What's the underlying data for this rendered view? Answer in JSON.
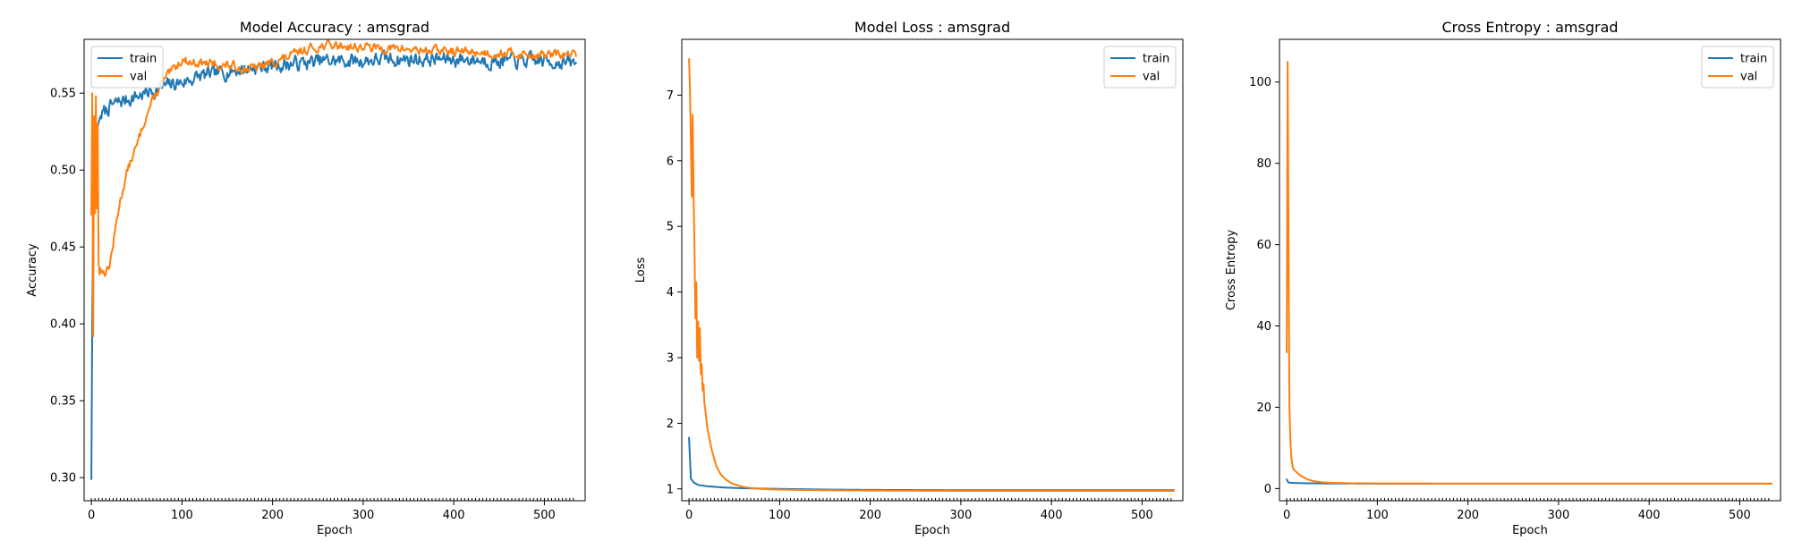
{
  "chart_data": [
    {
      "type": "line",
      "title": "Model Accuracy : amsgrad",
      "xlabel": "Epoch",
      "ylabel": "Accuracy",
      "xlim": [
        -8,
        545
      ],
      "ylim": [
        0.285,
        0.585
      ],
      "xticks": [
        0,
        100,
        200,
        300,
        400,
        500
      ],
      "yticks": [
        0.3,
        0.35,
        0.4,
        0.45,
        0.5,
        0.55
      ],
      "yticks_format": 2,
      "legend": "top-left",
      "grid": false,
      "series": [
        {
          "name": "train",
          "color": "#1f77b4",
          "x": [
            0,
            1,
            2,
            4,
            6,
            8,
            10,
            15,
            20,
            30,
            40,
            50,
            60,
            70,
            80,
            90,
            100,
            110,
            120,
            130,
            140,
            150,
            160,
            170,
            180,
            190,
            200,
            220,
            240,
            260,
            280,
            300,
            320,
            340,
            360,
            380,
            400,
            420,
            440,
            460,
            480,
            500,
            520,
            535
          ],
          "values": [
            0.299,
            0.4,
            0.47,
            0.515,
            0.525,
            0.531,
            0.535,
            0.538,
            0.541,
            0.544,
            0.546,
            0.548,
            0.55,
            0.552,
            0.554,
            0.556,
            0.557,
            0.559,
            0.561,
            0.562,
            0.563,
            0.564,
            0.565,
            0.566,
            0.567,
            0.567,
            0.568,
            0.569,
            0.57,
            0.571,
            0.571,
            0.571,
            0.572,
            0.572,
            0.572,
            0.572,
            0.572,
            0.572,
            0.571,
            0.571,
            0.571,
            0.571,
            0.57,
            0.569
          ],
          "noise": 0.004,
          "seed": 7
        },
        {
          "name": "val",
          "color": "#ff7f0e",
          "x": [
            0,
            1,
            2,
            3,
            4,
            5,
            6,
            7,
            8,
            9,
            10,
            12,
            15,
            20,
            25,
            30,
            35,
            40,
            45,
            50,
            55,
            60,
            70,
            80,
            90,
            100,
            110,
            120,
            130,
            140,
            150,
            160,
            170,
            180,
            190,
            200,
            210,
            220,
            230,
            240,
            250,
            260,
            270,
            280,
            290,
            300,
            320,
            340,
            360,
            380,
            400,
            420,
            440,
            460,
            480,
            500,
            520,
            535
          ],
          "values": [
            0.471,
            0.55,
            0.392,
            0.535,
            0.472,
            0.548,
            0.475,
            0.53,
            0.44,
            0.432,
            0.436,
            0.434,
            0.434,
            0.438,
            0.455,
            0.475,
            0.488,
            0.5,
            0.508,
            0.515,
            0.525,
            0.535,
            0.548,
            0.558,
            0.565,
            0.572,
            0.57,
            0.57,
            0.569,
            0.568,
            0.568,
            0.567,
            0.566,
            0.566,
            0.568,
            0.57,
            0.572,
            0.574,
            0.577,
            0.579,
            0.58,
            0.581,
            0.581,
            0.581,
            0.58,
            0.58,
            0.579,
            0.579,
            0.578,
            0.578,
            0.577,
            0.577,
            0.576,
            0.576,
            0.575,
            0.575,
            0.575,
            0.575
          ],
          "noise": 0.0025,
          "seed": 13
        }
      ]
    },
    {
      "type": "line",
      "title": "Model Loss : amsgrad",
      "xlabel": "Epoch",
      "ylabel": "Loss",
      "xlim": [
        -8,
        545
      ],
      "ylim": [
        0.82,
        7.85
      ],
      "xticks": [
        0,
        100,
        200,
        300,
        400,
        500
      ],
      "yticks": [
        1,
        2,
        3,
        4,
        5,
        6,
        7
      ],
      "yticks_format": 0,
      "legend": "top-right",
      "grid": false,
      "series": [
        {
          "name": "train",
          "color": "#1f77b4",
          "x": [
            0,
            2,
            5,
            10,
            20,
            30,
            40,
            60,
            80,
            100,
            150,
            200,
            300,
            400,
            535
          ],
          "values": [
            1.78,
            1.16,
            1.1,
            1.06,
            1.04,
            1.03,
            1.02,
            1.01,
            1.005,
            1.0,
            0.99,
            0.985,
            0.98,
            0.98,
            0.98
          ],
          "noise": 0,
          "seed": 1
        },
        {
          "name": "val",
          "color": "#ff7f0e",
          "x": [
            0,
            1,
            2,
            3,
            4,
            5,
            6,
            7,
            8,
            9,
            10,
            11,
            12,
            13,
            14,
            15,
            16,
            17,
            18,
            20,
            22,
            25,
            28,
            30,
            35,
            40,
            45,
            50,
            60,
            70,
            80,
            90,
            100,
            120,
            150,
            200,
            300,
            400,
            535
          ],
          "values": [
            7.55,
            7.1,
            6.3,
            5.45,
            6.7,
            5.5,
            4.7,
            3.6,
            4.15,
            3.0,
            3.55,
            2.95,
            3.45,
            2.75,
            2.9,
            2.5,
            2.6,
            2.3,
            2.2,
            1.95,
            1.8,
            1.6,
            1.45,
            1.35,
            1.22,
            1.15,
            1.1,
            1.07,
            1.03,
            1.01,
            1.0,
            0.995,
            0.99,
            0.985,
            0.98,
            0.975,
            0.97,
            0.97,
            0.97
          ],
          "noise": 0,
          "seed": 2
        }
      ]
    },
    {
      "type": "line",
      "title": "Cross Entropy : amsgrad",
      "xlabel": "Epoch",
      "ylabel": "Cross Entropy",
      "xlim": [
        -8,
        545
      ],
      "ylim": [
        -3.0,
        110.5
      ],
      "xticks": [
        0,
        100,
        200,
        300,
        400,
        500
      ],
      "yticks": [
        0,
        20,
        40,
        60,
        80,
        100
      ],
      "yticks_format": 0,
      "legend": "top-right",
      "grid": false,
      "series": [
        {
          "name": "train",
          "color": "#1f77b4",
          "x": [
            0,
            1,
            2,
            5,
            10,
            20,
            40,
            100,
            535
          ],
          "values": [
            2.2,
            1.8,
            1.5,
            1.4,
            1.35,
            1.3,
            1.25,
            1.2,
            1.2
          ],
          "noise": 0,
          "seed": 3
        },
        {
          "name": "val",
          "color": "#ff7f0e",
          "x": [
            0,
            1,
            2,
            3,
            4,
            5,
            6,
            7,
            8,
            10,
            12,
            15,
            20,
            25,
            30,
            40,
            50,
            70,
            100,
            200,
            300,
            400,
            535
          ],
          "values": [
            33.5,
            105.0,
            60.0,
            20.0,
            12.0,
            8.0,
            6.0,
            5.0,
            4.6,
            4.2,
            3.8,
            3.2,
            2.6,
            2.1,
            1.8,
            1.5,
            1.4,
            1.3,
            1.25,
            1.2,
            1.2,
            1.2,
            1.2
          ],
          "noise": 0,
          "seed": 4
        }
      ]
    }
  ]
}
